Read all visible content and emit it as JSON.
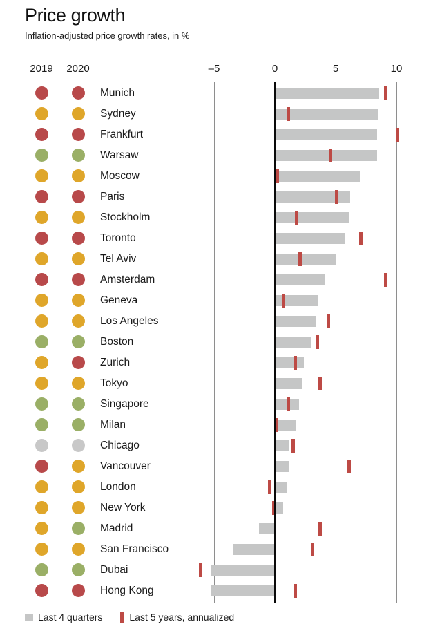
{
  "header": {
    "title": "Price growth",
    "subtitle": "Inflation-adjusted price growth rates, in %"
  },
  "legend": {
    "bar_label": "Last 4 quarters",
    "marker_label": "Last 5 years, annualized"
  },
  "colors": {
    "red": "#b8494a",
    "yellow": "#dfa62a",
    "green": "#9aaf66",
    "gray": "#c8c8c8",
    "bar": "#c5c6c6",
    "marker": "#bd4a45",
    "gridline": "#8e8e8e",
    "zeroline": "#0a0a0a"
  },
  "chart_data": {
    "type": "bar",
    "orientation": "horizontal",
    "title": "Price growth",
    "subtitle": "Inflation-adjusted price growth rates, in %",
    "grid": true,
    "legend_position": "bottom",
    "xlim": [
      -7,
      11
    ],
    "ticks": [
      -5,
      0,
      5,
      10
    ],
    "tick_labels": [
      "–5",
      "0",
      "5",
      "10"
    ],
    "categories": [
      "Munich",
      "Sydney",
      "Frankfurt",
      "Warsaw",
      "Moscow",
      "Paris",
      "Stockholm",
      "Toronto",
      "Tel Aviv",
      "Amsterdam",
      "Geneva",
      "Los Angeles",
      "Boston",
      "Zurich",
      "Tokyo",
      "Singapore",
      "Milan",
      "Chicago",
      "Vancouver",
      "London",
      "New York",
      "Madrid",
      "San Francisco",
      "Dubai",
      "Hong Kong"
    ],
    "series": [
      {
        "name": "Last 4 quarters",
        "values": [
          8.6,
          8.5,
          8.4,
          8.4,
          7.0,
          6.2,
          6.1,
          5.8,
          5.0,
          4.1,
          3.5,
          3.4,
          3.0,
          2.4,
          2.3,
          2.0,
          1.7,
          1.2,
          1.2,
          1.0,
          0.7,
          -1.3,
          -3.4,
          -5.2,
          -5.2
        ]
      },
      {
        "name": "Last 5 years, annualized",
        "values": [
          9.1,
          1.1,
          10.1,
          4.6,
          0.2,
          5.1,
          1.8,
          7.1,
          2.1,
          9.1,
          0.7,
          4.4,
          3.5,
          1.7,
          3.7,
          1.1,
          0.1,
          1.5,
          6.1,
          -0.4,
          -0.1,
          3.7,
          3.1,
          -6.1,
          1.7
        ]
      }
    ],
    "dot_columns": [
      {
        "label": "2019",
        "colors": [
          "red",
          "yellow",
          "red",
          "green",
          "yellow",
          "red",
          "yellow",
          "red",
          "yellow",
          "red",
          "yellow",
          "yellow",
          "green",
          "yellow",
          "yellow",
          "green",
          "green",
          "gray",
          "red",
          "yellow",
          "yellow",
          "yellow",
          "yellow",
          "green",
          "red"
        ]
      },
      {
        "label": "2020",
        "colors": [
          "red",
          "yellow",
          "red",
          "green",
          "yellow",
          "red",
          "yellow",
          "red",
          "yellow",
          "red",
          "yellow",
          "yellow",
          "green",
          "red",
          "yellow",
          "green",
          "green",
          "gray",
          "yellow",
          "yellow",
          "yellow",
          "green",
          "yellow",
          "green",
          "red"
        ]
      }
    ]
  }
}
